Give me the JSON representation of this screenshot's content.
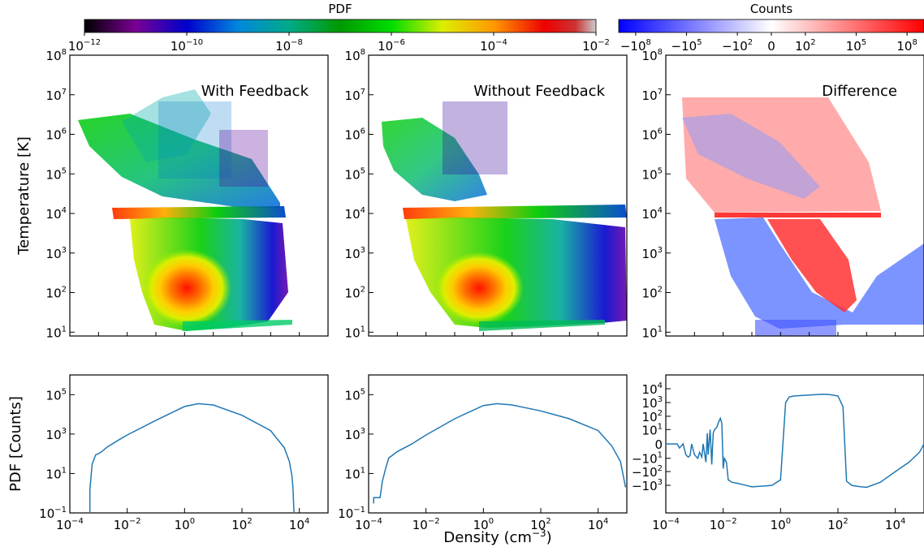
{
  "figure": {
    "colorbar_pdf": {
      "title": "PDF",
      "scale": "log",
      "colormap": "nipy_spectral",
      "ticks": [
        {
          "base": "10",
          "exp": "−12"
        },
        {
          "base": "10",
          "exp": "−10"
        },
        {
          "base": "10",
          "exp": "−8"
        },
        {
          "base": "10",
          "exp": "−6"
        },
        {
          "base": "10",
          "exp": "−4"
        },
        {
          "base": "10",
          "exp": "−2"
        }
      ]
    },
    "colorbar_counts": {
      "title": "Counts",
      "scale": "symlog",
      "colormap": "bwr",
      "ticks": [
        {
          "base": "−10",
          "exp": "8"
        },
        {
          "base": "−10",
          "exp": "5"
        },
        {
          "base": "−10",
          "exp": "2"
        },
        {
          "base": "0",
          "exp": ""
        },
        {
          "base": "10",
          "exp": "2"
        },
        {
          "base": "10",
          "exp": "5"
        },
        {
          "base": "10",
          "exp": "8"
        }
      ]
    },
    "ylabel_top": "Temperature [K]",
    "ylabel_bottom": "PDF [Counts]",
    "xlabel": {
      "text": "Density (cm",
      "sup": "−3",
      "close": ")"
    }
  },
  "chart_data": [
    {
      "type": "heatmap",
      "title": "With Feedback",
      "x_scale": "log",
      "y_scale": "log",
      "xlim": [
        0.0001,
        100000
      ],
      "ylim": [
        8,
        100000000
      ],
      "y_ticks": [
        {
          "base": "10",
          "exp": "1"
        },
        {
          "base": "10",
          "exp": "2"
        },
        {
          "base": "10",
          "exp": "3"
        },
        {
          "base": "10",
          "exp": "4"
        },
        {
          "base": "10",
          "exp": "5"
        },
        {
          "base": "10",
          "exp": "6"
        },
        {
          "base": "10",
          "exp": "7"
        },
        {
          "base": "10",
          "exp": "8"
        }
      ],
      "color_scale": "PDF",
      "peak": {
        "log_density": 0.3,
        "log_temperature": 2.2,
        "pdf": 0.001
      }
    },
    {
      "type": "heatmap",
      "title": "Without Feedback",
      "x_scale": "log",
      "y_scale": "log",
      "xlim": [
        0.0001,
        100000
      ],
      "ylim": [
        8,
        100000000
      ],
      "y_ticks": [
        {
          "base": "10",
          "exp": "1"
        },
        {
          "base": "10",
          "exp": "2"
        },
        {
          "base": "10",
          "exp": "3"
        },
        {
          "base": "10",
          "exp": "4"
        },
        {
          "base": "10",
          "exp": "5"
        },
        {
          "base": "10",
          "exp": "6"
        },
        {
          "base": "10",
          "exp": "7"
        },
        {
          "base": "10",
          "exp": "8"
        }
      ],
      "color_scale": "PDF",
      "peak": {
        "log_density": 0.3,
        "log_temperature": 2.2,
        "pdf": 0.001
      }
    },
    {
      "type": "heatmap",
      "title": "Difference",
      "x_scale": "log",
      "y_scale": "log",
      "xlim": [
        0.0001,
        100000
      ],
      "ylim": [
        8,
        100000000
      ],
      "y_ticks": [
        {
          "base": "10",
          "exp": "1"
        },
        {
          "base": "10",
          "exp": "2"
        },
        {
          "base": "10",
          "exp": "3"
        },
        {
          "base": "10",
          "exp": "4"
        },
        {
          "base": "10",
          "exp": "5"
        },
        {
          "base": "10",
          "exp": "6"
        },
        {
          "base": "10",
          "exp": "7"
        },
        {
          "base": "10",
          "exp": "8"
        }
      ],
      "color_scale": "Counts"
    },
    {
      "type": "line",
      "x_scale": "log",
      "y_scale": "log",
      "xlim": [
        0.0001,
        100000
      ],
      "ylim": [
        0.1,
        1000000
      ],
      "x_ticks": [
        {
          "base": "10",
          "exp": "−4"
        },
        {
          "base": "10",
          "exp": "−2"
        },
        {
          "base": "10",
          "exp": "0"
        },
        {
          "base": "10",
          "exp": "2"
        },
        {
          "base": "10",
          "exp": "4"
        }
      ],
      "y_ticks": [
        {
          "base": "10",
          "exp": "−1"
        },
        {
          "base": "10",
          "exp": "1"
        },
        {
          "base": "10",
          "exp": "3"
        },
        {
          "base": "10",
          "exp": "5"
        }
      ],
      "series": [
        {
          "x": [
            0.0005,
            0.0005,
            0.0006,
            0.0008,
            0.001,
            0.0013,
            0.002,
            0.005,
            0.01,
            0.1,
            1,
            3,
            10,
            100,
            1000,
            3000,
            4500,
            5500,
            6000,
            6500
          ],
          "y": [
            0.1,
            1.5,
            30,
            90,
            100,
            130,
            220,
            500,
            900,
            5000,
            25000,
            35000,
            30000,
            9000,
            1500,
            200,
            40,
            8,
            2,
            0.1
          ]
        }
      ]
    },
    {
      "type": "line",
      "x_scale": "log",
      "y_scale": "log",
      "xlim": [
        0.0001,
        100000
      ],
      "ylim": [
        0.1,
        1000000
      ],
      "x_ticks": [
        {
          "base": "10",
          "exp": "−4"
        },
        {
          "base": "10",
          "exp": "−2"
        },
        {
          "base": "10",
          "exp": "0"
        },
        {
          "base": "10",
          "exp": "2"
        },
        {
          "base": "10",
          "exp": "4"
        }
      ],
      "y_ticks": [
        {
          "base": "10",
          "exp": "−1"
        },
        {
          "base": "10",
          "exp": "1"
        },
        {
          "base": "10",
          "exp": "3"
        },
        {
          "base": "10",
          "exp": "5"
        }
      ],
      "series": [
        {
          "x": [
            0.00015,
            0.00015,
            0.00025,
            0.0003,
            0.0004,
            0.0005,
            0.001,
            0.003,
            0.01,
            0.1,
            1,
            3,
            10,
            100,
            1000,
            10000,
            30000,
            60000,
            90000
          ],
          "y": [
            0.3,
            0.6,
            0.6,
            4,
            20,
            60,
            130,
            300,
            900,
            6000,
            28000,
            35000,
            30000,
            15000,
            6000,
            1500,
            250,
            40,
            2
          ]
        }
      ]
    },
    {
      "type": "line",
      "x_scale": "log",
      "y_scale": "symlog",
      "xlim": [
        0.0001,
        100000
      ],
      "ylim": [
        -100000,
        100000
      ],
      "x_ticks": [
        {
          "base": "10",
          "exp": "−4"
        },
        {
          "base": "10",
          "exp": "−2"
        },
        {
          "base": "10",
          "exp": "0"
        },
        {
          "base": "10",
          "exp": "2"
        },
        {
          "base": "10",
          "exp": "4"
        }
      ],
      "y_ticks": [
        {
          "base": "10",
          "exp": "4",
          "value": 10000
        },
        {
          "base": "10",
          "exp": "3",
          "value": 1000
        },
        {
          "base": "10",
          "exp": "2",
          "value": 100
        },
        {
          "base": "10",
          "exp": "1",
          "value": 10
        },
        {
          "base": "0",
          "exp": "",
          "value": 0
        },
        {
          "base": "−10",
          "exp": "1",
          "value": -10
        },
        {
          "base": "−10",
          "exp": "2",
          "value": -100
        },
        {
          "base": "−10",
          "exp": "3",
          "value": -1000
        }
      ],
      "series": [
        {
          "x": [
            0.0001,
            0.0002,
            0.00025,
            0.0003,
            0.0004,
            0.0005,
            0.0006,
            0.0007,
            0.0008,
            0.001,
            0.0013,
            0.0015,
            0.0018,
            0.002,
            0.0025,
            0.0028,
            0.003,
            0.0035,
            0.004,
            0.0045,
            0.005,
            0.006,
            0.007,
            0.008,
            0.009,
            0.01,
            0.011,
            0.013,
            0.015,
            0.02,
            0.03,
            0.05,
            0.1,
            0.3,
            0.5,
            1,
            1.5,
            2,
            3,
            10,
            30,
            50,
            100,
            150,
            200,
            300,
            500,
            1000,
            3000,
            10000,
            30000,
            70000,
            100000
          ],
          "y": [
            0,
            0,
            0,
            -1,
            0,
            -5,
            -8,
            -6,
            0,
            -5,
            -10,
            -3,
            -8,
            0,
            -20,
            5,
            -5,
            10,
            -30,
            5,
            10,
            15,
            40,
            70,
            30,
            -60,
            -10,
            -20,
            -400,
            -600,
            -700,
            -900,
            -1300,
            -1100,
            -1000,
            -400,
            1000,
            2500,
            3000,
            3500,
            4000,
            3800,
            3000,
            500,
            -500,
            -1000,
            -1200,
            -1400,
            -600,
            -100,
            -20,
            -3,
            0
          ]
        }
      ]
    }
  ]
}
